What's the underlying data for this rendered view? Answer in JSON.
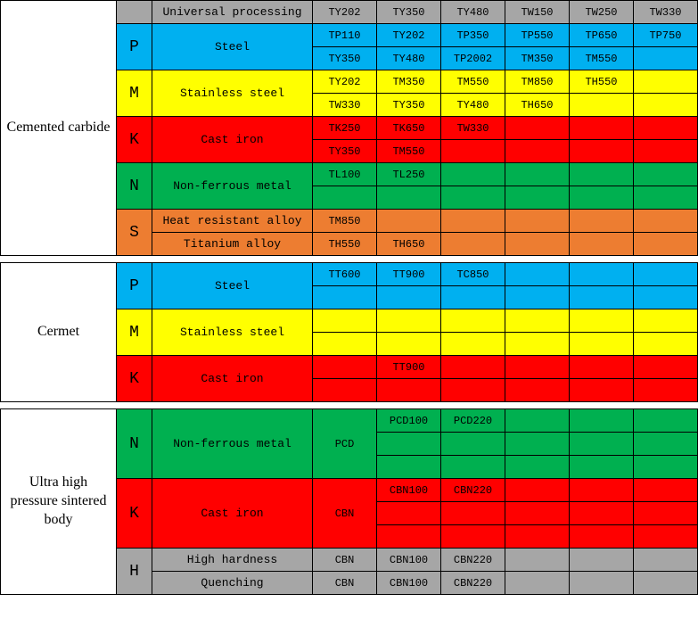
{
  "colors": {
    "gray": "#a6a6a6",
    "blue": "#00b0f0",
    "yellow": "#ffff00",
    "red": "#ff0000",
    "green": "#00b050",
    "orange": "#ed7d31",
    "white": "#ffffff"
  },
  "widths": {
    "c0": 130,
    "c1": 40,
    "c2": 180,
    "c3": 72,
    "c4": 72,
    "c5": 72,
    "c6": 72,
    "c7": 72,
    "c8": 72
  },
  "s1": {
    "title": "Cemented carbide",
    "header": {
      "label": "Universal processing",
      "cells": [
        "TY202",
        "TY350",
        "TY480",
        "TW150",
        "TW250",
        "TW330"
      ]
    },
    "rows": [
      {
        "letter": "P",
        "color": "blue",
        "desc": "Steel",
        "r1": [
          "TP110",
          "TY202",
          "TP350",
          "TP550",
          "TP650",
          "TP750"
        ],
        "r2": [
          "TY350",
          "TY480",
          "TP2002",
          "TM350",
          "TM550",
          ""
        ]
      },
      {
        "letter": "M",
        "color": "yellow",
        "desc": "Stainless steel",
        "r1": [
          "TY202",
          "TM350",
          "TM550",
          "TM850",
          "TH550",
          ""
        ],
        "r2": [
          "TW330",
          "TY350",
          "TY480",
          "TH650",
          "",
          ""
        ]
      },
      {
        "letter": "K",
        "color": "red",
        "desc": "Cast iron",
        "r1": [
          "TK250",
          "TK650",
          "TW330",
          "",
          "",
          ""
        ],
        "r2": [
          "TY350",
          "TM550",
          "",
          "",
          "",
          ""
        ]
      },
      {
        "letter": "N",
        "color": "green",
        "desc": "Non-ferrous metal",
        "r1": [
          "TL100",
          "TL250",
          "",
          "",
          "",
          ""
        ],
        "r2": [
          "",
          "",
          "",
          "",
          "",
          ""
        ]
      },
      {
        "letter": "S",
        "color": "orange",
        "desc1": "Heat resistant alloy",
        "r1": [
          "TM850",
          "",
          "",
          "",
          "",
          ""
        ],
        "desc2": "Titanium alloy",
        "r2": [
          "TH550",
          "TH650",
          "",
          "",
          "",
          ""
        ]
      }
    ]
  },
  "s2": {
    "title": "Cermet",
    "rows": [
      {
        "letter": "P",
        "color": "blue",
        "desc": "Steel",
        "r1": [
          "TT600",
          "TT900",
          "TC850",
          "",
          "",
          ""
        ],
        "r2": [
          "",
          "",
          "",
          "",
          "",
          ""
        ]
      },
      {
        "letter": "M",
        "color": "yellow",
        "desc": "Stainless steel",
        "r1": [
          "",
          "",
          "",
          "",
          "",
          ""
        ],
        "r2": [
          "",
          "",
          "",
          "",
          "",
          ""
        ]
      },
      {
        "letter": "K",
        "color": "red",
        "desc": "Cast iron",
        "r1": [
          "",
          "TT900",
          "",
          "",
          "",
          ""
        ],
        "r2": [
          "",
          "",
          "",
          "",
          "",
          ""
        ]
      }
    ]
  },
  "s3": {
    "title": "Ultra high pressure sintered body",
    "rows": [
      {
        "letter": "N",
        "color": "green",
        "desc": "Non-ferrous metal",
        "sub": "PCD",
        "r1": [
          "PCD100",
          "PCD220",
          "",
          "",
          ""
        ],
        "r2": [
          "",
          "",
          "",
          "",
          ""
        ],
        "r3": [
          "",
          "",
          "",
          "",
          ""
        ]
      },
      {
        "letter": "K",
        "color": "red",
        "desc": "Cast iron",
        "sub": "CBN",
        "r1": [
          "CBN100",
          "CBN220",
          "",
          "",
          ""
        ],
        "r2": [
          "",
          "",
          "",
          "",
          ""
        ],
        "r3": [
          "",
          "",
          "",
          "",
          ""
        ]
      },
      {
        "letter": "H",
        "color": "gray",
        "desc1": "High hardness",
        "sub1": "CBN",
        "r1": [
          "CBN100",
          "CBN220",
          "",
          "",
          ""
        ],
        "desc2": "Quenching",
        "sub2": "CBN",
        "r2": [
          "CBN100",
          "CBN220",
          "",
          "",
          ""
        ]
      }
    ]
  }
}
